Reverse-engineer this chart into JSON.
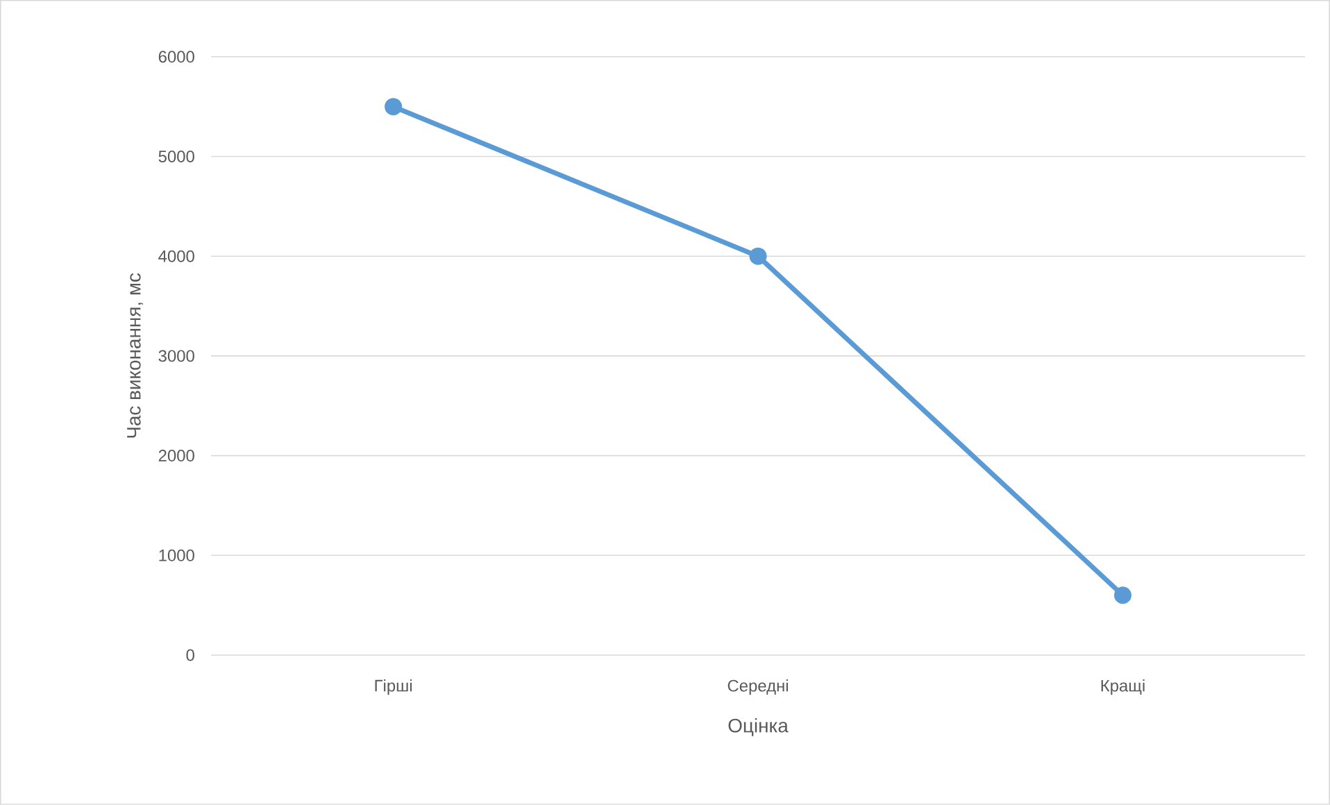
{
  "chart_data": {
    "type": "line",
    "xlabel": "Оцінка",
    "ylabel": "Час виконання, мс",
    "categories": [
      "Гірші",
      "Середні",
      "Кращі"
    ],
    "series": [
      {
        "color": "#5b9bd5",
        "values": [
          5500,
          4000,
          600
        ]
      }
    ],
    "ylim": [
      0,
      6000
    ],
    "yticks": [
      0,
      1000,
      2000,
      3000,
      4000,
      5000,
      6000
    ],
    "grid": "y",
    "marker": "circle",
    "line_style": "solid"
  }
}
